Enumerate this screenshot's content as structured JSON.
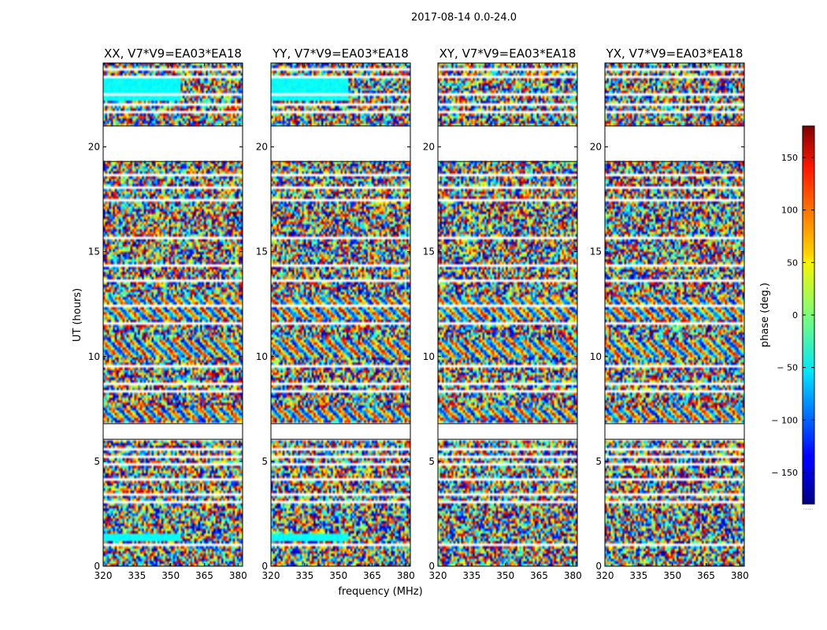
{
  "chart_data": {
    "type": "heatmap",
    "suptitle": "2017-08-14 0.0-24.0",
    "xlabel": "frequency (MHz)",
    "ylabel": "UT (hours)",
    "xlim": [
      320,
      382
    ],
    "ylim": [
      0,
      24
    ],
    "xticks": [
      320,
      335,
      350,
      365,
      380
    ],
    "yticks": [
      0,
      5,
      10,
      15,
      20
    ],
    "colorbar": {
      "label": "phase (deg.)",
      "range": [
        -180,
        180
      ],
      "ticks": [
        150,
        100,
        50,
        0,
        -50,
        -100,
        -150
      ],
      "tick_labels": [
        "150",
        "100",
        "50",
        "0",
        "− 50",
        "− 100",
        "− 150"
      ],
      "colormap": "jet",
      "footer": "....."
    },
    "panels": [
      {
        "id": "xx",
        "title": "XX, V7*V9=EA03*EA18"
      },
      {
        "id": "yy",
        "title": "YY, V7*V9=EA03*EA18"
      },
      {
        "id": "xy",
        "title": "XY, V7*V9=EA03*EA18"
      },
      {
        "id": "yx",
        "title": "YX, V7*V9=EA03*EA18"
      }
    ],
    "gaps_hours": [
      [
        6.05,
        6.8
      ],
      [
        19.3,
        21.0
      ]
    ],
    "flagged_hours": [
      [
        0.45,
        0.52
      ],
      [
        0.95,
        1.02
      ],
      [
        1.55,
        1.62
      ],
      [
        2.12,
        2.2
      ],
      [
        3.02,
        3.1
      ],
      [
        3.35,
        3.42
      ],
      [
        4.1,
        4.18
      ],
      [
        4.82,
        4.9
      ],
      [
        5.2,
        5.28
      ],
      [
        5.58,
        5.67
      ],
      [
        7.65,
        7.72
      ],
      [
        8.32,
        8.4
      ],
      [
        8.65,
        8.72
      ],
      [
        9.2,
        9.28
      ],
      [
        9.52,
        9.6
      ],
      [
        10.9,
        10.98
      ],
      [
        11.55,
        11.62
      ],
      [
        12.4,
        12.47
      ],
      [
        13.05,
        13.12
      ],
      [
        13.6,
        13.68
      ],
      [
        14.3,
        14.38
      ],
      [
        15.08,
        15.16
      ],
      [
        15.65,
        15.72
      ],
      [
        16.3,
        16.38
      ],
      [
        16.75,
        16.85
      ],
      [
        17.4,
        17.47
      ],
      [
        18.0,
        18.07
      ],
      [
        18.6,
        18.7
      ],
      [
        21.2,
        21.3
      ],
      [
        21.6,
        21.68
      ],
      [
        22.0,
        22.08
      ],
      [
        22.45,
        22.52
      ],
      [
        22.9,
        22.97
      ],
      [
        23.3,
        23.38
      ],
      [
        23.65,
        23.72
      ]
    ]
  }
}
